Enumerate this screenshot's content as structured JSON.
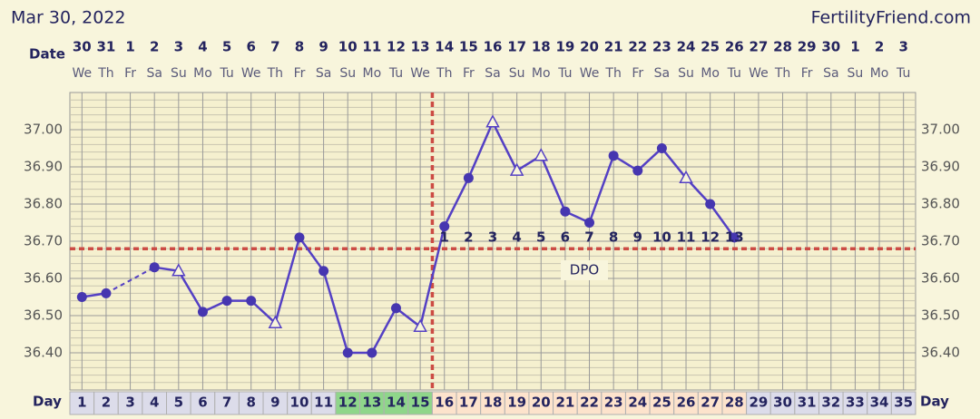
{
  "header": {
    "title": "Mar 30, 2022",
    "site": "FertilityFriend.com"
  },
  "chart_data": {
    "type": "line",
    "date_label": "Date",
    "day_label": "Day",
    "dpo_label": "DPO",
    "x": [
      1,
      2,
      3,
      4,
      5,
      6,
      7,
      8,
      9,
      10,
      11,
      12,
      13,
      14,
      15,
      16,
      17,
      18,
      19,
      20,
      21,
      22,
      23,
      24,
      25,
      26,
      27,
      28,
      29,
      30,
      31,
      32,
      33,
      34,
      35
    ],
    "dates": [
      30,
      31,
      1,
      2,
      3,
      4,
      5,
      6,
      7,
      8,
      9,
      10,
      11,
      12,
      13,
      14,
      15,
      16,
      17,
      18,
      19,
      20,
      21,
      22,
      23,
      24,
      25,
      26,
      27,
      28,
      29,
      30,
      1,
      2,
      3
    ],
    "weekdays": [
      "We",
      "Th",
      "Fr",
      "Sa",
      "Su",
      "Mo",
      "Tu",
      "We",
      "Th",
      "Fr",
      "Sa",
      "Su",
      "Mo",
      "Tu",
      "We",
      "Th",
      "Fr",
      "Sa",
      "Su",
      "Mo",
      "Tu",
      "We",
      "Th",
      "Fr",
      "Sa",
      "Su",
      "Mo",
      "Tu",
      "We",
      "Th",
      "Fr",
      "Sa",
      "Su",
      "Mo",
      "Tu"
    ],
    "values": [
      36.55,
      36.56,
      null,
      36.63,
      36.62,
      36.51,
      36.54,
      36.54,
      36.48,
      36.71,
      36.62,
      36.4,
      36.4,
      36.52,
      36.47,
      36.74,
      36.87,
      37.02,
      36.89,
      36.93,
      36.78,
      36.75,
      36.93,
      36.89,
      36.95,
      36.87,
      36.8,
      36.71,
      null,
      null,
      null,
      null,
      null,
      null,
      null
    ],
    "markers": [
      "circle",
      "circle",
      null,
      "circle",
      "triangle",
      "circle",
      "circle",
      "circle",
      "triangle",
      "circle",
      "circle",
      "circle",
      "circle",
      "circle",
      "triangle",
      "circle",
      "circle",
      "triangle",
      "triangle",
      "triangle",
      "circle",
      "circle",
      "circle",
      "circle",
      "circle",
      "triangle",
      "circle",
      "circle",
      null,
      null,
      null,
      null,
      null,
      null,
      null
    ],
    "dpo": [
      null,
      null,
      null,
      null,
      null,
      null,
      null,
      null,
      null,
      null,
      null,
      null,
      null,
      null,
      null,
      1,
      2,
      3,
      4,
      5,
      6,
      7,
      8,
      9,
      10,
      11,
      12,
      13,
      null,
      null,
      null,
      null,
      null,
      null,
      null
    ],
    "day_colors": [
      "#dcdcea",
      "#dcdcea",
      "#dcdcea",
      "#dcdcea",
      "#dcdcea",
      "#dcdcea",
      "#dcdcea",
      "#dcdcea",
      "#dcdcea",
      "#dcdcea",
      "#dcdcea",
      "#8fd68a",
      "#8fd68a",
      "#8fd68a",
      "#8fd68a",
      "#fde3cc",
      "#fde3cc",
      "#fde3cc",
      "#fde3cc",
      "#fde3cc",
      "#fde3cc",
      "#fde3cc",
      "#fde3cc",
      "#fde3cc",
      "#fde3cc",
      "#fde3cc",
      "#fde3cc",
      "#fde3cc",
      "#dcdcea",
      "#dcdcea",
      "#dcdcea",
      "#dcdcea",
      "#dcdcea",
      "#dcdcea",
      "#dcdcea"
    ],
    "color": "#5440c4",
    "coverline": 36.68,
    "coverline_color": "#cc4b44",
    "ovulation_day": 15,
    "xlim": [
      0.5,
      35.5
    ],
    "ylim": [
      36.3,
      37.1
    ],
    "yticks": [
      {
        "value": 36.4,
        "label": "36.40"
      },
      {
        "value": 36.5,
        "label": "36.50"
      },
      {
        "value": 36.6,
        "label": "36.60"
      },
      {
        "value": 36.7,
        "label": "36.70"
      },
      {
        "value": 36.8,
        "label": "36.80"
      },
      {
        "value": 36.9,
        "label": "36.90"
      },
      {
        "value": 37.0,
        "label": "37.00"
      }
    ],
    "grid": true
  }
}
